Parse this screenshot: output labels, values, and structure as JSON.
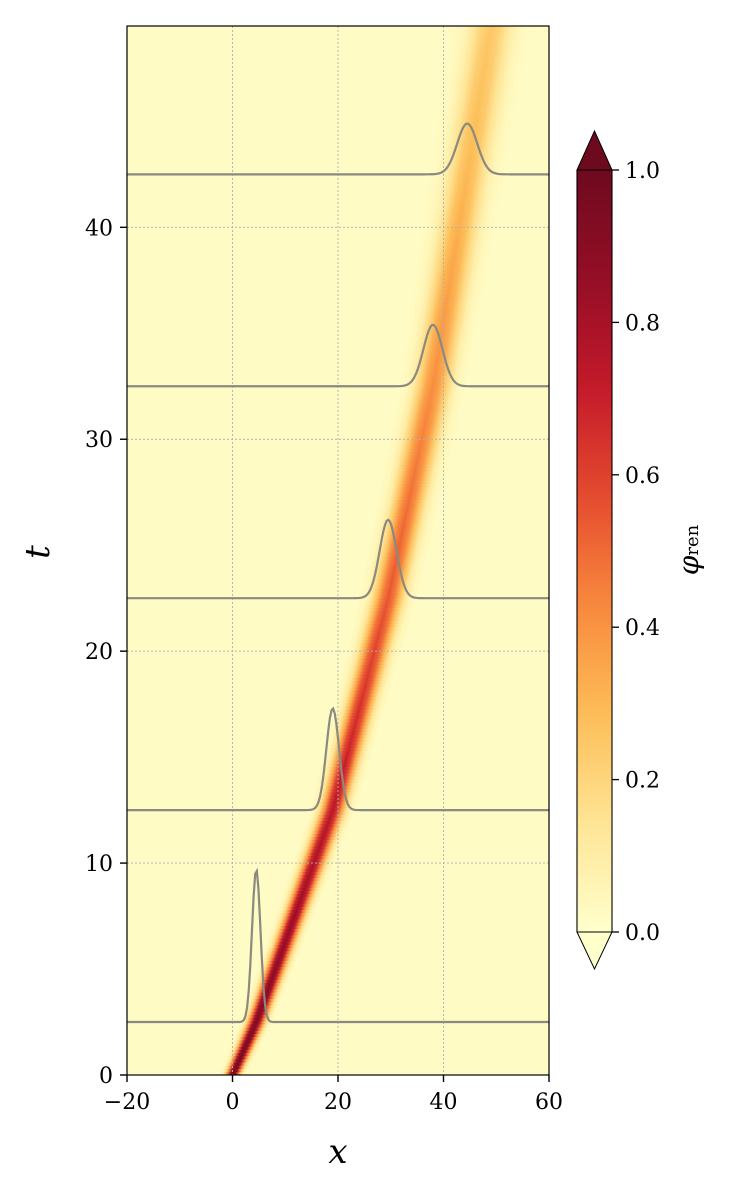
{
  "chart_data": {
    "type": "heatmap",
    "title": "",
    "xlabel": "x",
    "ylabel": "t",
    "xlim": [
      -20,
      60
    ],
    "ylim": [
      0,
      49.5
    ],
    "xticks": [
      -20,
      0,
      20,
      40,
      60
    ],
    "xtick_labels": [
      "−20",
      "0",
      "20",
      "40",
      "60"
    ],
    "yticks": [
      0,
      10,
      20,
      30,
      40
    ],
    "ytick_labels": [
      "0",
      "10",
      "20",
      "30",
      "40"
    ],
    "grid": true,
    "colormap": "YlOrRd",
    "colors": [
      "#ffffcc",
      "#fee595",
      "#fdbd57",
      "#f8893d",
      "#e54b2f",
      "#c4192a",
      "#940e26",
      "#6e0a1e"
    ],
    "colorbar": {
      "label_main": "φ",
      "label_sub": "ren",
      "range": [
        0,
        1
      ],
      "ticks": [
        0.0,
        0.2,
        0.4,
        0.6,
        0.8,
        1.0
      ],
      "tick_labels": [
        "0.0",
        "0.2",
        "0.4",
        "0.6",
        "0.8",
        "1.0"
      ],
      "extend": "both"
    },
    "pulse_trajectory": {
      "t": [
        0,
        2.5,
        12.5,
        22.5,
        32.5,
        42.5,
        49.5
      ],
      "x": [
        0,
        4.5,
        19,
        29.5,
        38,
        44.5,
        49
      ],
      "peak_amplitude": [
        1.0,
        0.95,
        0.75,
        0.55,
        0.42,
        0.3,
        0.25
      ],
      "width": [
        0.8,
        1.0,
        1.4,
        1.8,
        2.1,
        2.4,
        2.6
      ]
    },
    "series": [
      {
        "t": 2.5,
        "center_x": 4.5,
        "peak_height_t": 7.2,
        "width": 0.8
      },
      {
        "t": 12.5,
        "center_x": 19,
        "peak_height_t": 4.8,
        "width": 1.2
      },
      {
        "t": 22.5,
        "center_x": 29.5,
        "peak_height_t": 3.7,
        "width": 1.6
      },
      {
        "t": 32.5,
        "center_x": 38,
        "peak_height_t": 2.9,
        "width": 1.8
      },
      {
        "t": 42.5,
        "center_x": 44.5,
        "peak_height_t": 2.4,
        "width": 1.9
      }
    ]
  }
}
